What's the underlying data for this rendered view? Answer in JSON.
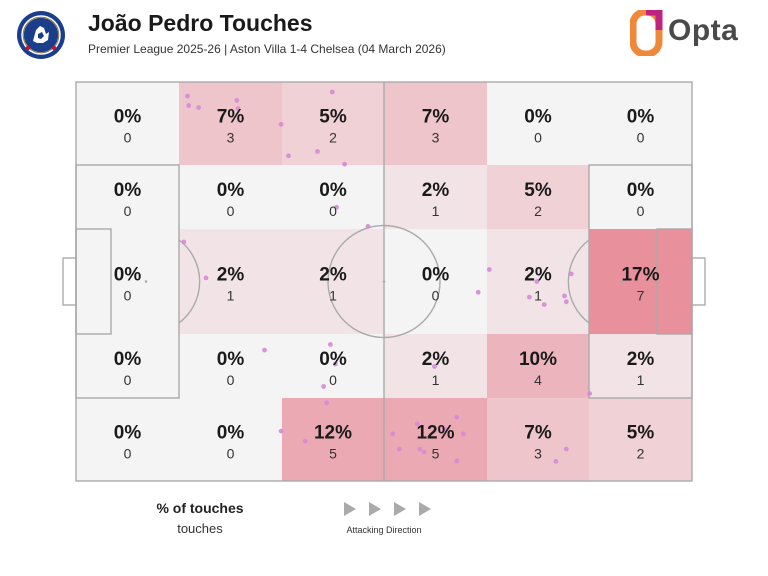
{
  "header": {
    "title": "João Pedro Touches",
    "subtitle": "Premier League 2025-26 | Aston Villa 1-4 Chelsea (04 March 2026)",
    "brand": "Opta",
    "crest_icon": "chelsea-crest-icon",
    "brand_icon": "opta-logo-icon"
  },
  "legend": {
    "title": "% of touches",
    "subtitle": "touches",
    "direction_label": "Attacking Direction",
    "arrow_icon": "triangle-right-icon"
  },
  "colors": {
    "pitch_line": "#aaaaaa",
    "zone_base": "#f4f4f4",
    "zone_heat": "#e8909c",
    "touch_dot": "#d68ad6"
  },
  "chart_data": {
    "type": "heatmap",
    "rows": 5,
    "cols": 6,
    "cells": [
      [
        {
          "pct": "0%",
          "count": "0"
        },
        {
          "pct": "7%",
          "count": "3"
        },
        {
          "pct": "5%",
          "count": "2"
        },
        {
          "pct": "7%",
          "count": "3"
        },
        {
          "pct": "0%",
          "count": "0"
        },
        {
          "pct": "0%",
          "count": "0"
        }
      ],
      [
        {
          "pct": "0%",
          "count": "0"
        },
        {
          "pct": "0%",
          "count": "0"
        },
        {
          "pct": "0%",
          "count": "0"
        },
        {
          "pct": "2%",
          "count": "1"
        },
        {
          "pct": "5%",
          "count": "2"
        },
        {
          "pct": "0%",
          "count": "0"
        }
      ],
      [
        {
          "pct": "0%",
          "count": "0"
        },
        {
          "pct": "2%",
          "count": "1"
        },
        {
          "pct": "2%",
          "count": "1"
        },
        {
          "pct": "0%",
          "count": "0"
        },
        {
          "pct": "2%",
          "count": "1"
        },
        {
          "pct": "17%",
          "count": "7"
        }
      ],
      [
        {
          "pct": "0%",
          "count": "0"
        },
        {
          "pct": "0%",
          "count": "0"
        },
        {
          "pct": "0%",
          "count": "0"
        },
        {
          "pct": "2%",
          "count": "1"
        },
        {
          "pct": "10%",
          "count": "4"
        },
        {
          "pct": "2%",
          "count": "1"
        }
      ],
      [
        {
          "pct": "0%",
          "count": "0"
        },
        {
          "pct": "0%",
          "count": "0"
        },
        {
          "pct": "12%",
          "count": "5"
        },
        {
          "pct": "12%",
          "count": "5"
        },
        {
          "pct": "7%",
          "count": "3"
        },
        {
          "pct": "5%",
          "count": "2"
        }
      ]
    ],
    "max_pct": 17,
    "x_range": [
      0,
      100
    ],
    "y_range": [
      0,
      100
    ],
    "touches": [
      [
        18.1,
        3.5
      ],
      [
        18.3,
        5.9
      ],
      [
        19.9,
        6.4
      ],
      [
        26.1,
        4.6
      ],
      [
        26.3,
        6.7
      ],
      [
        33.3,
        10.6
      ],
      [
        34.5,
        18.5
      ],
      [
        39.2,
        17.4
      ],
      [
        42.3,
        31.4
      ],
      [
        41.6,
        2.5
      ],
      [
        43.6,
        20.6
      ],
      [
        47.4,
        36.2
      ],
      [
        17.5,
        40.1
      ],
      [
        21.1,
        49.1
      ],
      [
        67.1,
        47.0
      ],
      [
        65.3,
        52.7
      ],
      [
        74.8,
        50.0
      ],
      [
        76.0,
        55.8
      ],
      [
        73.6,
        53.9
      ],
      [
        79.3,
        53.6
      ],
      [
        80.4,
        48.1
      ],
      [
        30.6,
        67.2
      ],
      [
        41.3,
        65.8
      ],
      [
        42.1,
        70.7
      ],
      [
        40.2,
        76.3
      ],
      [
        40.7,
        80.4
      ],
      [
        58.2,
        71.3
      ],
      [
        55.8,
        92.0
      ],
      [
        33.3,
        87.5
      ],
      [
        37.2,
        90.0
      ],
      [
        51.4,
        88.2
      ],
      [
        52.5,
        92.0
      ],
      [
        56.5,
        92.7
      ],
      [
        55.4,
        85.7
      ],
      [
        60.0,
        87.1
      ],
      [
        61.8,
        84.0
      ],
      [
        61.8,
        95.0
      ],
      [
        62.9,
        88.2
      ],
      [
        79.6,
        55.1
      ],
      [
        83.4,
        78.1
      ],
      [
        79.6,
        92.0
      ],
      [
        77.9,
        95.1
      ]
    ]
  }
}
